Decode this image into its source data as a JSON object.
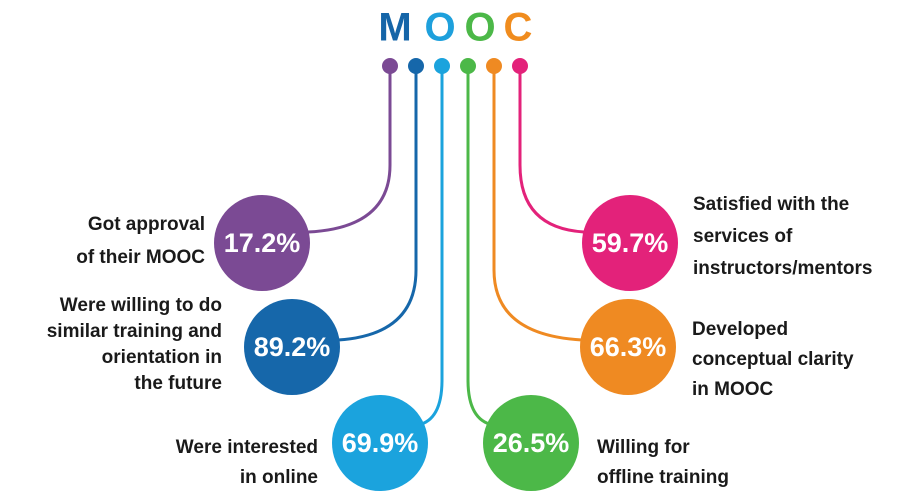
{
  "title": [
    "M",
    "O",
    "O",
    "C"
  ],
  "items": [
    {
      "value": "17.2%",
      "label": [
        "Got approval",
        "of their MOOC"
      ]
    },
    {
      "value": "89.2%",
      "label": [
        "Were willing to do",
        "similar training and",
        "orientation in",
        "the future"
      ]
    },
    {
      "value": "69.9%",
      "label": [
        "Were interested",
        "in online"
      ]
    },
    {
      "value": "26.5%",
      "label": [
        "Willing for",
        "offline training"
      ]
    },
    {
      "value": "66.3%",
      "label": [
        "Developed",
        "conceptual clarity",
        "in MOOC"
      ]
    },
    {
      "value": "59.7%",
      "label": [
        "Satisfied with the",
        "services of",
        "instructors/mentors"
      ]
    }
  ]
}
